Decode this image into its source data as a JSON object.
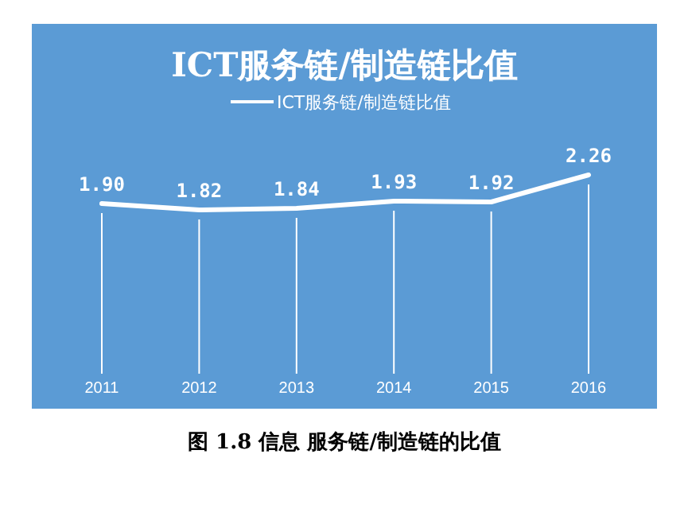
{
  "chart_data": {
    "type": "line",
    "title": "ICT服务链/制造链比值",
    "categories": [
      "2011",
      "2012",
      "2013",
      "2014",
      "2015",
      "2016"
    ],
    "series": [
      {
        "name": "ICT服务链/制造链比值",
        "color": "#ffffff",
        "values": [
          1.9,
          1.82,
          1.84,
          1.93,
          1.92,
          2.26
        ],
        "value_labels": [
          "1.90",
          "1.82",
          "1.84",
          "1.93",
          "1.92",
          "2.26"
        ]
      }
    ],
    "legend": "top",
    "marker": "none",
    "line_style": "solid",
    "annotations": [
      "图 1.8 信息 服务链/制造链的比值"
    ]
  }
}
